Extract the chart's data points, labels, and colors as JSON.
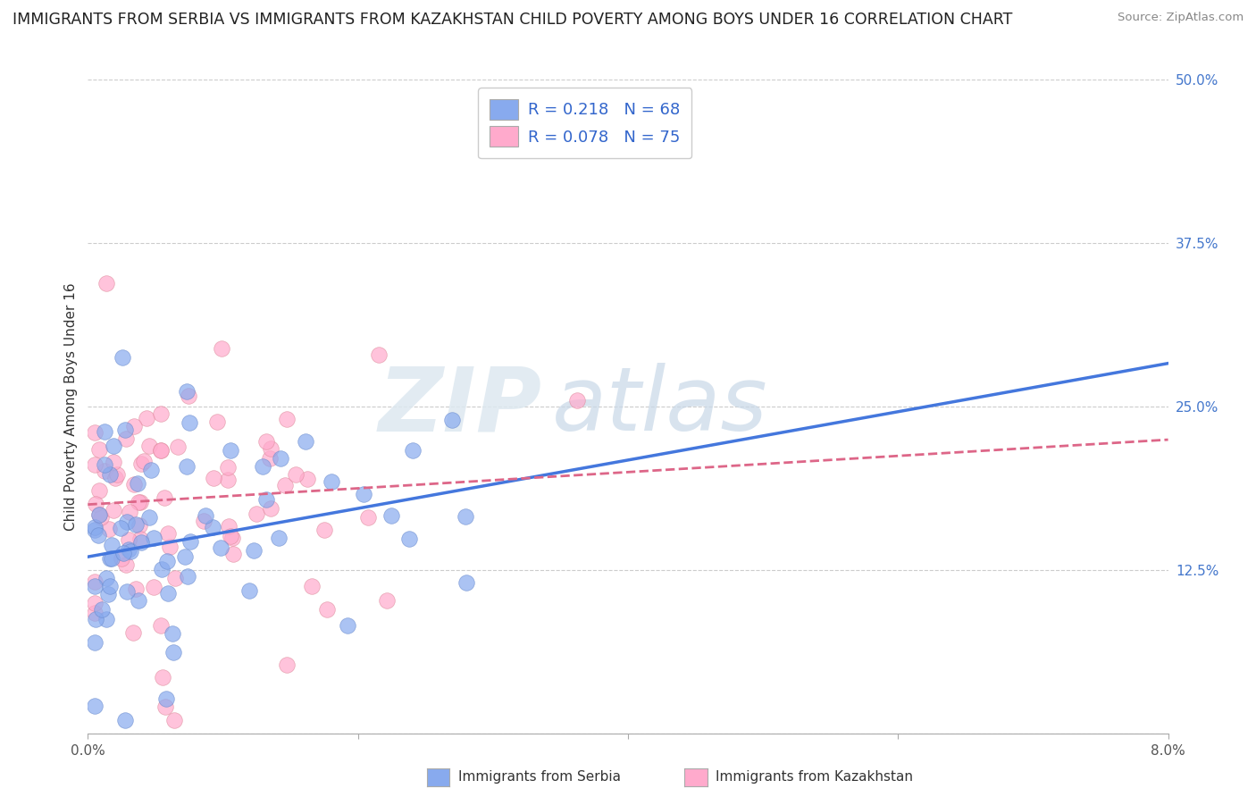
{
  "title": "IMMIGRANTS FROM SERBIA VS IMMIGRANTS FROM KAZAKHSTAN CHILD POVERTY AMONG BOYS UNDER 16 CORRELATION CHART",
  "source": "Source: ZipAtlas.com",
  "ylabel": "Child Poverty Among Boys Under 16",
  "xlim": [
    0.0,
    0.08
  ],
  "ylim": [
    0.0,
    0.5
  ],
  "xticks": [
    0.0,
    0.02,
    0.04,
    0.06,
    0.08
  ],
  "xtick_labels": [
    "0.0%",
    "",
    "",
    "",
    "8.0%"
  ],
  "ytick_positions": [
    0.0,
    0.125,
    0.25,
    0.375,
    0.5
  ],
  "ytick_labels": [
    "",
    "12.5%",
    "25.0%",
    "37.5%",
    "50.0%"
  ],
  "serbia_color": "#88aaee",
  "serbia_edge_color": "#6688cc",
  "serbia_line_color": "#4477dd",
  "kazakhstan_color": "#ffaacc",
  "kazakhstan_edge_color": "#dd8899",
  "kazakhstan_line_color": "#dd6688",
  "serbia_R": 0.218,
  "serbia_N": 68,
  "kazakhstan_R": 0.078,
  "kazakhstan_N": 75,
  "serbia_label": "Immigrants from Serbia",
  "kazakhstan_label": "Immigrants from Kazakhstan",
  "watermark_zip": "ZIP",
  "watermark_atlas": "atlas",
  "background_color": "#ffffff",
  "grid_color": "#cccccc",
  "title_fontsize": 12.5,
  "axis_label_fontsize": 11,
  "tick_fontsize": 11,
  "legend_fontsize": 13,
  "serbia_intercept": 0.135,
  "serbia_slope": 1.85,
  "kazakhstan_intercept": 0.175,
  "kazakhstan_slope": 0.62,
  "seed": 42
}
